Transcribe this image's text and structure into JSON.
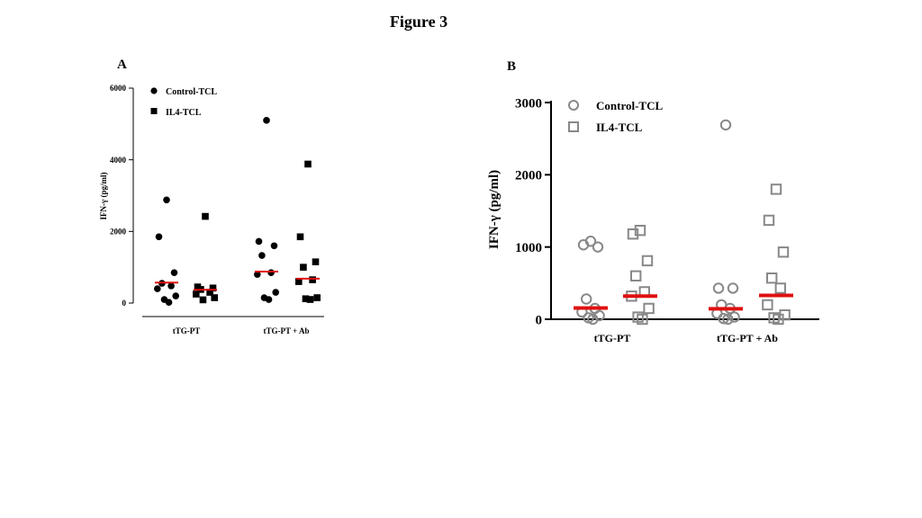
{
  "figure_title": "Figure 3",
  "colors": {
    "median": "#e01010",
    "filled": "#000000",
    "hollow": "#888888"
  },
  "chart_data": [
    {
      "panel_label": "A",
      "type": "scatter",
      "ylabel": "IFN-γ (pg/ml)",
      "ylim": [
        0,
        6000
      ],
      "yticks": [
        "0",
        "2000",
        "4000",
        "6000"
      ],
      "groups": [
        "tTG-PT",
        "tTG-PT + Ab"
      ],
      "series": [
        {
          "name": "Control-TCL",
          "marker": "circle-filled",
          "groups": [
            {
              "values": [
                2880,
                1850,
                850,
                550,
                480,
                400,
                200,
                100,
                20
              ],
              "median": 570
            },
            {
              "values": [
                5100,
                1720,
                1600,
                1330,
                850,
                800,
                300,
                150,
                100
              ],
              "median": 880
            }
          ]
        },
        {
          "name": "IL4-TCL",
          "marker": "square-filled",
          "groups": [
            {
              "values": [
                2420,
                450,
                420,
                380,
                300,
                250,
                150,
                90
              ],
              "median": 370
            },
            {
              "values": [
                3880,
                1850,
                1150,
                1000,
                650,
                600,
                150,
                120,
                100
              ],
              "median": 680
            }
          ]
        }
      ]
    },
    {
      "panel_label": "B",
      "type": "scatter",
      "ylabel": "IFN-γ (pg/ml)",
      "ylim": [
        0,
        3000
      ],
      "yticks": [
        "0",
        "1000",
        "2000",
        "3000"
      ],
      "groups": [
        "tTG-PT",
        "tTG-PT + Ab"
      ],
      "series": [
        {
          "name": "Control-TCL",
          "marker": "circle-hollow",
          "groups": [
            {
              "values": [
                1080,
                1030,
                1000,
                280,
                150,
                100,
                50,
                20,
                0
              ],
              "median": 155
            },
            {
              "values": [
                2690,
                430,
                430,
                200,
                150,
                80,
                30,
                10,
                0
              ],
              "median": 145
            }
          ]
        },
        {
          "name": "IL4-TCL",
          "marker": "square-hollow",
          "groups": [
            {
              "values": [
                1230,
                1180,
                810,
                600,
                380,
                320,
                150,
                30,
                0
              ],
              "median": 320
            },
            {
              "values": [
                1800,
                1370,
                930,
                570,
                430,
                200,
                60,
                20,
                0
              ],
              "median": 330
            }
          ]
        }
      ]
    }
  ]
}
